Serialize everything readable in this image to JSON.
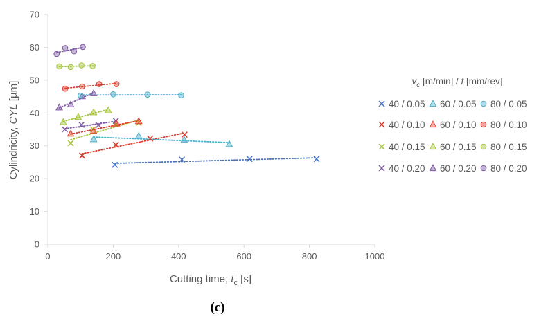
{
  "chart_data": {
    "type": "scatter",
    "xlabel_main": "Cutting time, ",
    "xlabel_sym": "t",
    "xlabel_sub": "c",
    "xlabel_unit": " [s]",
    "ylabel_main": "Cylindricity, ",
    "ylabel_sym": "CYL",
    "ylabel_unit": " [µm]",
    "xlim": [
      0,
      1000
    ],
    "ylim": [
      0,
      70
    ],
    "x_ticks": [
      "0",
      "200",
      "400",
      "600",
      "800",
      "1000"
    ],
    "y_ticks": [
      "0",
      "10",
      "20",
      "30",
      "40",
      "50",
      "60",
      "70"
    ],
    "grid": false,
    "panel_label": "(c)",
    "legend_position": "right",
    "legend_title_v": "v",
    "legend_title_vsub": "c",
    "legend_title_mid": " [m/min] / ",
    "legend_title_f": "f",
    "legend_title_end": " [mm/rev]",
    "series": [
      {
        "name": "40 / 0.05",
        "marker": "x",
        "color": "#4472c4",
        "trend_color": "#4472c4",
        "x": [
          205,
          410,
          617,
          822
        ],
        "y": [
          24.2,
          25.8,
          26.0,
          26.0
        ]
      },
      {
        "name": "40 / 0.10",
        "marker": "x",
        "color": "#e0392b",
        "trend_color": "#e0392b",
        "x": [
          105,
          208,
          313,
          418
        ],
        "y": [
          27.0,
          30.3,
          32.2,
          33.4
        ]
      },
      {
        "name": "40 / 0.15",
        "marker": "x",
        "color": "#a5c43a",
        "trend_color": "#a5c43a",
        "x": [
          70,
          138,
          208,
          278
        ],
        "y": [
          30.8,
          35.0,
          36.5,
          37.0
        ]
      },
      {
        "name": "40 / 0.20",
        "marker": "x",
        "color": "#7e5aa3",
        "trend_color": "#7e5aa3",
        "x": [
          52,
          103,
          155,
          208
        ],
        "y": [
          35.0,
          36.4,
          36.3,
          37.6
        ]
      },
      {
        "name": "60 / 0.05",
        "marker": "triangle",
        "color": "#4bacc6",
        "trend_color": "#4bacc6",
        "x": [
          140,
          278,
          417,
          555
        ],
        "y": [
          32.0,
          33.0,
          31.8,
          30.5
        ]
      },
      {
        "name": "60 / 0.10",
        "marker": "triangle",
        "color": "#e0392b",
        "trend_color": "#e0392b",
        "x": [
          70,
          140,
          210,
          278
        ],
        "y": [
          33.7,
          34.5,
          36.8,
          37.5
        ]
      },
      {
        "name": "60 / 0.15",
        "marker": "triangle",
        "color": "#a5c43a",
        "trend_color": "#a5c43a",
        "x": [
          47,
          93,
          140,
          185
        ],
        "y": [
          37.2,
          38.8,
          40.2,
          40.8
        ]
      },
      {
        "name": "60 / 0.20",
        "marker": "triangle",
        "color": "#7e5aa3",
        "trend_color": "#7e5aa3",
        "x": [
          35,
          70,
          105,
          140
        ],
        "y": [
          41.7,
          42.6,
          45.1,
          46.0
        ]
      },
      {
        "name": "80 / 0.05",
        "marker": "circle",
        "color": "#4bacc6",
        "trend_color": "#4bacc6",
        "x": [
          100,
          200,
          305,
          408
        ],
        "y": [
          45.3,
          45.7,
          45.6,
          45.4
        ]
      },
      {
        "name": "80 / 0.10",
        "marker": "circle",
        "color": "#e0392b",
        "trend_color": "#e0392b",
        "x": [
          53,
          105,
          157,
          210
        ],
        "y": [
          47.4,
          48.1,
          48.8,
          48.8
        ]
      },
      {
        "name": "80 / 0.15",
        "marker": "circle",
        "color": "#a5c43a",
        "trend_color": "#a5c43a",
        "x": [
          35,
          70,
          103,
          137
        ],
        "y": [
          54.2,
          54.0,
          54.5,
          54.3
        ]
      },
      {
        "name": "80 / 0.20",
        "marker": "circle",
        "color": "#7e5aa3",
        "trend_color": "#7e5aa3",
        "x": [
          27,
          53,
          80,
          107
        ],
        "y": [
          58.0,
          59.8,
          58.8,
          60.1
        ]
      }
    ]
  }
}
